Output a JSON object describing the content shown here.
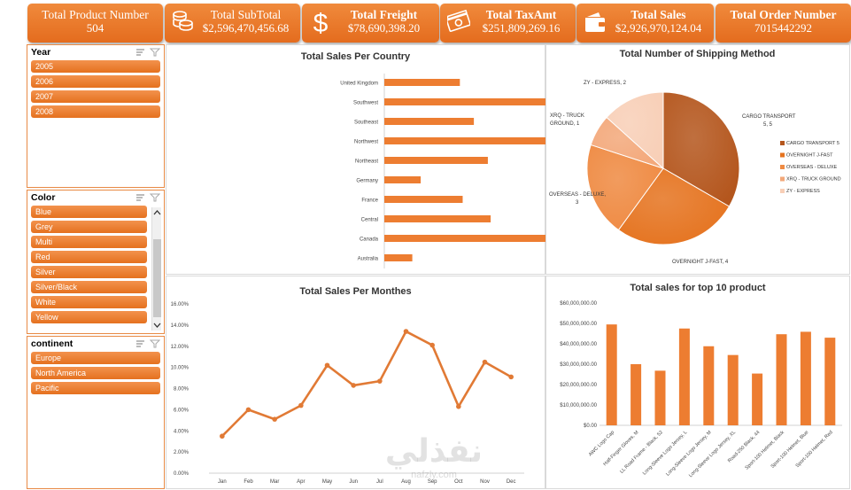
{
  "kpis": [
    {
      "title": "Total Product Number",
      "value": "504",
      "icon": "none"
    },
    {
      "title": "Total SubTotal",
      "value": "$2,596,470,456.68",
      "icon": "coins-icon"
    },
    {
      "title": "Total Freight",
      "value": "$78,690,398.20",
      "icon": "dollar-icon"
    },
    {
      "title": "Total TaxAmt",
      "value": "$251,809,269.16",
      "icon": "banknote-icon"
    },
    {
      "title": "Total Sales",
      "value": "$2,926,970,124.04",
      "icon": "wallet-icon"
    },
    {
      "title": "Total Order Number",
      "value": "7015442292",
      "icon": "none"
    }
  ],
  "slicers": {
    "year": {
      "title": "Year",
      "items": [
        "2005",
        "2006",
        "2007",
        "2008"
      ]
    },
    "color": {
      "title": "Color",
      "items": [
        "Blue",
        "Grey",
        "Multi",
        "Red",
        "Silver",
        "Silver/Black",
        "White",
        "Yellow"
      ]
    },
    "continent": {
      "title": "continent",
      "items": [
        "Europe",
        "North America",
        "Pacific"
      ]
    }
  },
  "colors": {
    "accent": "#ed7d31",
    "accent_dark": "#c55a11",
    "border": "#e88a45"
  },
  "watermark": {
    "text": "نفذلي",
    "sub": "nafzly.com"
  },
  "chart_data": [
    {
      "type": "bar",
      "orientation": "horizontal",
      "title": "Total Sales Per Country",
      "categories": [
        "United Kingdom",
        "Southwest",
        "Southeast",
        "Northwest",
        "Northeast",
        "Germany",
        "France",
        "Central",
        "Canada",
        "Australia"
      ],
      "values": [
        0.27,
        1.0,
        0.32,
        0.59,
        0.37,
        0.13,
        0.28,
        0.38,
        0.76,
        0.1
      ],
      "value_unit": "relative (no axis shown)",
      "grid": false
    },
    {
      "type": "pie",
      "title": "Total Number of Shipping Method",
      "labels": [
        "CARGO TRANSPORT 5",
        "OVERNIGHT J-FAST",
        "OVERSEAS - DELUXE",
        "XRQ - TRUCK GROUND",
        "ZY - EXPRESS"
      ],
      "data_labels": [
        "CARGO TRANSPORT 5, 5",
        "OVERNIGHT J-FAST, 4",
        "OVERSEAS - DELUXE, 3",
        "XRQ - TRUCK GROUND, 1",
        "ZY - EXPRESS, 2"
      ],
      "values": [
        5,
        4,
        3,
        1,
        2
      ],
      "colors": [
        "#b4561d",
        "#e5731f",
        "#ef8a42",
        "#f3a87a",
        "#f8cfb7"
      ],
      "legend": "right"
    },
    {
      "type": "line",
      "title": "Total Sales Per Monthes",
      "categories": [
        "Jan",
        "Feb",
        "Mar",
        "Apr",
        "May",
        "Jun",
        "Jul",
        "Aug",
        "Sep",
        "Oct",
        "Nov",
        "Dec"
      ],
      "values": [
        3.5,
        6.0,
        5.1,
        6.4,
        10.2,
        8.3,
        8.7,
        13.4,
        12.1,
        6.3,
        10.5,
        9.1
      ],
      "yticks": [
        "0.00%",
        "2.00%",
        "4.00%",
        "6.00%",
        "8.00%",
        "10.00%",
        "12.00%",
        "14.00%",
        "16.00%"
      ],
      "ylim": [
        0,
        16
      ],
      "y_unit": "%",
      "grid": false
    },
    {
      "type": "bar",
      "title": "Total sales for top 10 product",
      "categories": [
        "AWC Logo Cap",
        "Half-Finger Gloves, M",
        "LL Road Frame - Black, 52",
        "Long-Sleeve Logo Jersey, L",
        "Long-Sleeve Logo Jersey, M",
        "Long-Sleeve Logo Jersey, XL",
        "Road-250 Black, 44",
        "Sport-100 Helmet, Black",
        "Sport-100 Helmet, Blue",
        "Sport-100 Helmet, Red"
      ],
      "values": [
        49500000,
        30000000,
        26800000,
        47500000,
        38800000,
        34500000,
        25400000,
        44700000,
        45900000,
        43000000
      ],
      "yticks": [
        "$0.00",
        "$10,000,000.00",
        "$20,000,000.00",
        "$30,000,000.00",
        "$40,000,000.00",
        "$50,000,000.00",
        "$60,000,000.00"
      ],
      "ylim": [
        0,
        60000000
      ],
      "grid": false
    }
  ]
}
